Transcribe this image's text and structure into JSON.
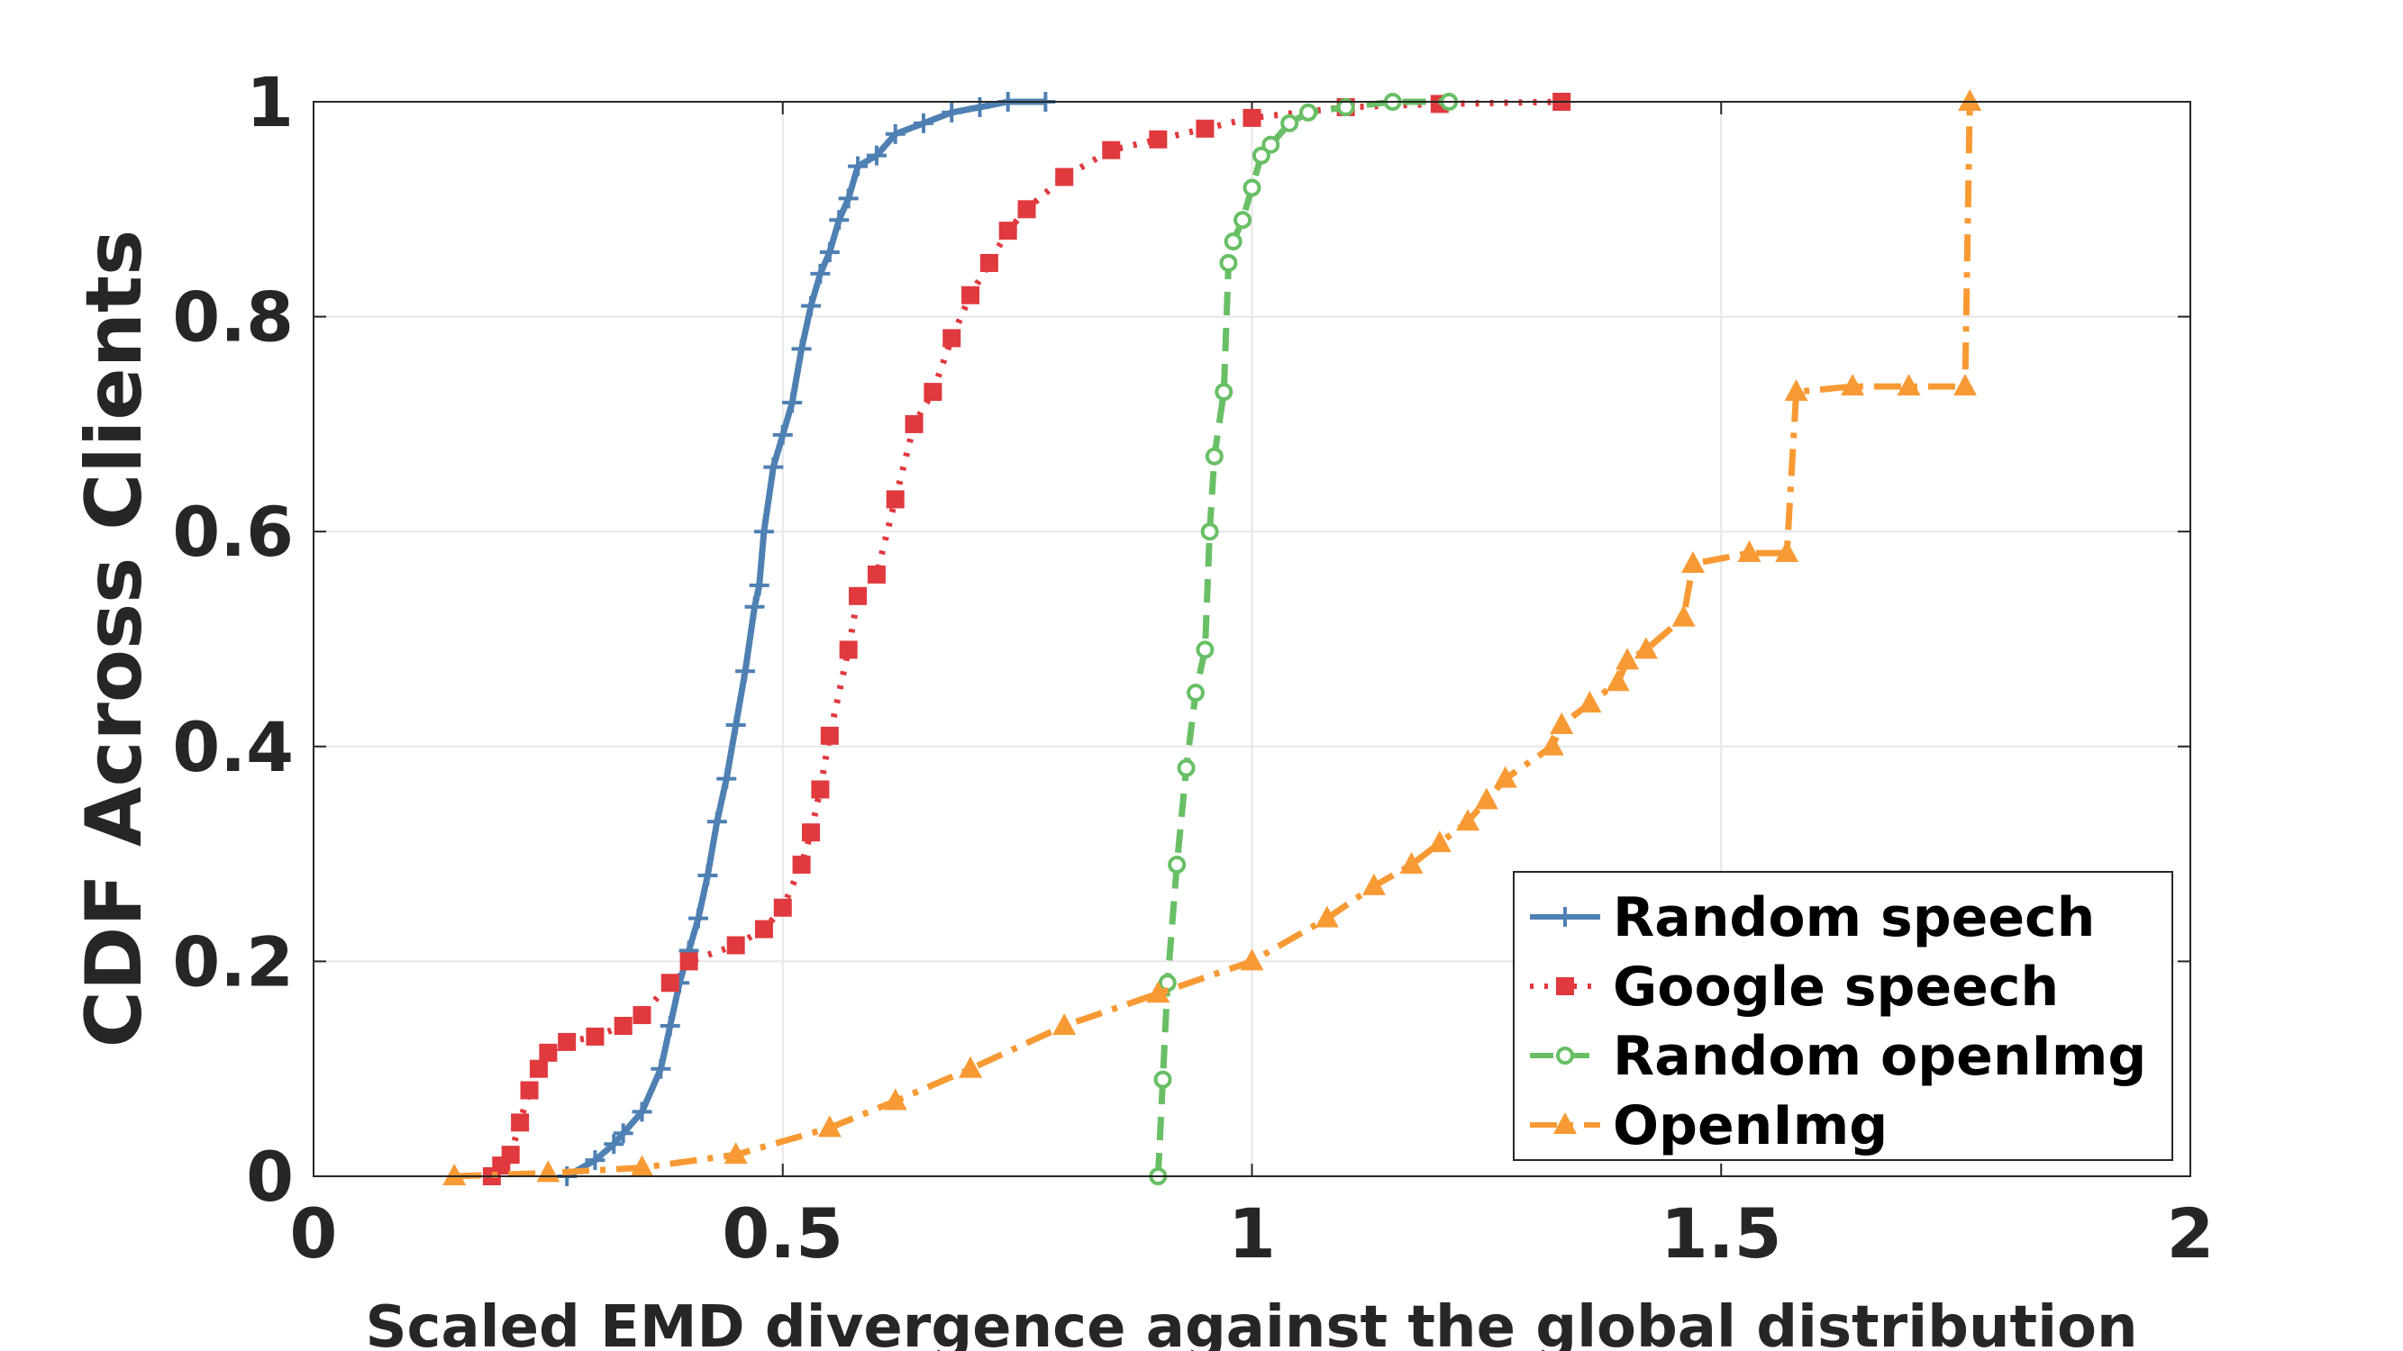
{
  "chart_data": {
    "type": "line",
    "title": "",
    "xlabel": "Scaled EMD divergence against the global distribution",
    "ylabel": "CDF Across Clients",
    "xlim": [
      0,
      2
    ],
    "ylim": [
      0,
      1
    ],
    "xticks": [
      0,
      0.5,
      1,
      1.5,
      2
    ],
    "xtick_labels": [
      "0",
      "0.5",
      "1",
      "1.5",
      "2"
    ],
    "yticks": [
      0,
      0.2,
      0.4,
      0.6,
      0.8,
      1
    ],
    "ytick_labels": [
      "0",
      "0.2",
      "0.4",
      "0.6",
      "0.8",
      "1"
    ],
    "grid": true,
    "legend_position": "bottom-right",
    "series": [
      {
        "name": "Random speech",
        "color": "#4f80b3",
        "line_style": "solid",
        "marker": "plus",
        "x": [
          0.27,
          0.3,
          0.32,
          0.33,
          0.35,
          0.37,
          0.38,
          0.39,
          0.4,
          0.41,
          0.42,
          0.43,
          0.44,
          0.45,
          0.46,
          0.47,
          0.475,
          0.48,
          0.49,
          0.5,
          0.51,
          0.52,
          0.53,
          0.54,
          0.55,
          0.56,
          0.57,
          0.58,
          0.6,
          0.62,
          0.65,
          0.68,
          0.71,
          0.74,
          0.78
        ],
        "y": [
          0.0,
          0.015,
          0.03,
          0.04,
          0.06,
          0.1,
          0.14,
          0.18,
          0.21,
          0.24,
          0.28,
          0.33,
          0.37,
          0.42,
          0.47,
          0.53,
          0.55,
          0.6,
          0.66,
          0.69,
          0.72,
          0.77,
          0.81,
          0.84,
          0.86,
          0.89,
          0.91,
          0.94,
          0.95,
          0.97,
          0.98,
          0.99,
          0.995,
          1.0,
          1.0
        ]
      },
      {
        "name": "Google speech",
        "color": "#e0393e",
        "line_style": "dotted",
        "marker": "square",
        "x": [
          0.19,
          0.2,
          0.21,
          0.22,
          0.23,
          0.24,
          0.25,
          0.27,
          0.3,
          0.33,
          0.35,
          0.38,
          0.4,
          0.45,
          0.48,
          0.5,
          0.52,
          0.53,
          0.54,
          0.55,
          0.57,
          0.58,
          0.6,
          0.62,
          0.64,
          0.66,
          0.68,
          0.7,
          0.72,
          0.74,
          0.76,
          0.8,
          0.85,
          0.9,
          0.95,
          1.0,
          1.1,
          1.2,
          1.33
        ],
        "y": [
          0.0,
          0.01,
          0.02,
          0.05,
          0.08,
          0.1,
          0.115,
          0.125,
          0.13,
          0.14,
          0.15,
          0.18,
          0.2,
          0.215,
          0.23,
          0.25,
          0.29,
          0.32,
          0.36,
          0.41,
          0.49,
          0.54,
          0.56,
          0.63,
          0.7,
          0.73,
          0.78,
          0.82,
          0.85,
          0.88,
          0.9,
          0.93,
          0.955,
          0.965,
          0.975,
          0.985,
          0.995,
          0.998,
          1.0
        ]
      },
      {
        "name": "Random openImg",
        "color": "#68bf65",
        "line_style": "dashed",
        "marker": "circle",
        "x": [
          0.9,
          0.905,
          0.91,
          0.92,
          0.93,
          0.94,
          0.95,
          0.955,
          0.96,
          0.97,
          0.975,
          0.98,
          0.99,
          1.0,
          1.01,
          1.02,
          1.04,
          1.06,
          1.1,
          1.15,
          1.21
        ],
        "y": [
          0.0,
          0.09,
          0.18,
          0.29,
          0.38,
          0.45,
          0.49,
          0.6,
          0.67,
          0.73,
          0.85,
          0.87,
          0.89,
          0.92,
          0.95,
          0.96,
          0.98,
          0.99,
          0.995,
          1.0,
          1.0
        ]
      },
      {
        "name": "OpenImg",
        "color": "#f89a34",
        "line_style": "dashdot",
        "marker": "triangle",
        "x": [
          0.15,
          0.25,
          0.35,
          0.45,
          0.55,
          0.62,
          0.7,
          0.8,
          0.9,
          1.0,
          1.08,
          1.13,
          1.17,
          1.2,
          1.23,
          1.25,
          1.27,
          1.32,
          1.33,
          1.36,
          1.39,
          1.4,
          1.42,
          1.46,
          1.47,
          1.53,
          1.57,
          1.58,
          1.64,
          1.7,
          1.76,
          1.765
        ],
        "y": [
          0.0,
          0.003,
          0.008,
          0.02,
          0.045,
          0.07,
          0.1,
          0.14,
          0.17,
          0.2,
          0.24,
          0.27,
          0.29,
          0.31,
          0.33,
          0.35,
          0.37,
          0.4,
          0.42,
          0.44,
          0.46,
          0.48,
          0.49,
          0.52,
          0.57,
          0.58,
          0.58,
          0.73,
          0.735,
          0.735,
          0.735,
          1.0
        ]
      }
    ]
  }
}
